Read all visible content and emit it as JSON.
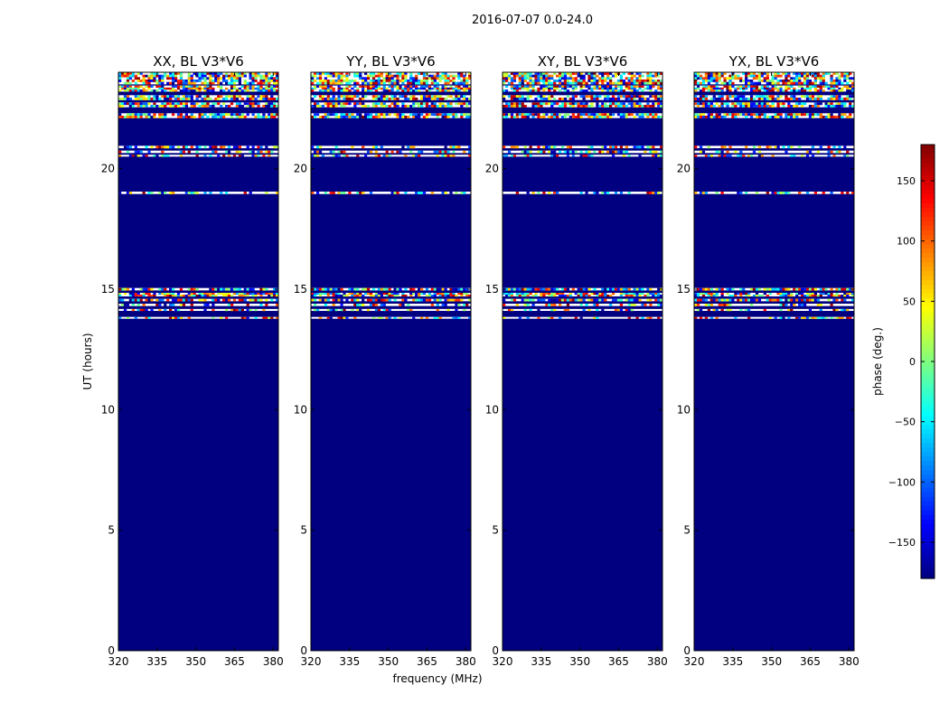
{
  "chart_data": {
    "type": "heatmap",
    "suptitle": "2016-07-07 0.0-24.0",
    "xlabel": "frequency (MHz)",
    "ylabel": "UT (hours)",
    "xlim": [
      320,
      382
    ],
    "ylim": [
      0,
      24
    ],
    "xticks": [
      320,
      335,
      350,
      365,
      380
    ],
    "yticks": [
      0,
      5,
      10,
      15,
      20
    ],
    "colorbar": {
      "label": "phase (deg.)",
      "range": [
        -180,
        180
      ],
      "ticks": [
        150,
        100,
        50,
        0,
        -50,
        -100,
        -150
      ],
      "tick_labels": [
        "150",
        "100",
        "50",
        "0",
        "−50",
        "−100",
        "−150"
      ],
      "colormap": "jet"
    },
    "background_value": -180,
    "panels": [
      {
        "title": "XX, BL V3*V6"
      },
      {
        "title": "YY, BL V3*V6"
      },
      {
        "title": "XY, BL V3*V6"
      },
      {
        "title": "YX, BL V3*V6"
      }
    ],
    "noise_bands_ut": [
      {
        "from": 23.5,
        "to": 24.0,
        "density": "dense"
      },
      {
        "from": 23.2,
        "to": 23.45,
        "density": "dense"
      },
      {
        "from": 22.85,
        "to": 23.05,
        "density": "dense"
      },
      {
        "from": 22.55,
        "to": 22.75,
        "density": "dense"
      },
      {
        "from": 22.1,
        "to": 22.3,
        "density": "dense"
      },
      {
        "from": 20.85,
        "to": 20.95,
        "density": "light"
      },
      {
        "from": 20.65,
        "to": 20.75,
        "density": "light"
      },
      {
        "from": 20.5,
        "to": 20.58,
        "density": "light"
      },
      {
        "from": 18.95,
        "to": 19.05,
        "density": "light"
      },
      {
        "from": 14.95,
        "to": 15.05,
        "density": "dense"
      },
      {
        "from": 14.7,
        "to": 14.85,
        "density": "dense"
      },
      {
        "from": 14.5,
        "to": 14.6,
        "density": "dense"
      },
      {
        "from": 14.3,
        "to": 14.4,
        "density": "light"
      },
      {
        "from": 14.1,
        "to": 14.18,
        "density": "light"
      },
      {
        "from": 13.8,
        "to": 13.85,
        "density": "light"
      }
    ]
  }
}
